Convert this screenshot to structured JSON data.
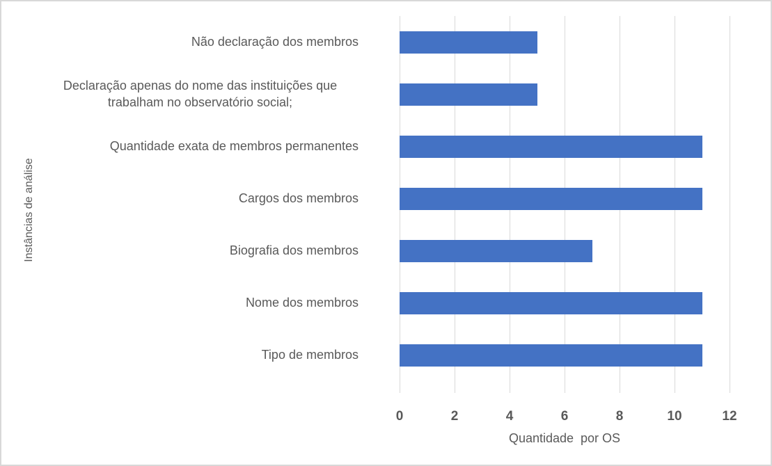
{
  "chart_data": {
    "type": "bar",
    "orientation": "horizontal",
    "title": "",
    "xlabel": "Quantidade  por OS",
    "ylabel": "Instâncias de análise",
    "categories": [
      "Não declaração dos membros",
      "Declaração apenas do nome das instituições que trabalham no observatório social;",
      "Quantidade exata de membros permanentes",
      "Cargos dos membros",
      "Biografia dos membros",
      "Nome dos membros",
      "Tipo de membros"
    ],
    "values": [
      5,
      5,
      11,
      11,
      7,
      11,
      11
    ],
    "xlim": [
      0,
      12
    ],
    "xticks": [
      0,
      2,
      4,
      6,
      8,
      10,
      12
    ],
    "grid": "vertical-major",
    "legend": "none",
    "bar_color": "#4472C4",
    "gridline_color": "#D9D9D9",
    "text_color": "#595959",
    "frame_border_color": "#D8D8D8"
  }
}
